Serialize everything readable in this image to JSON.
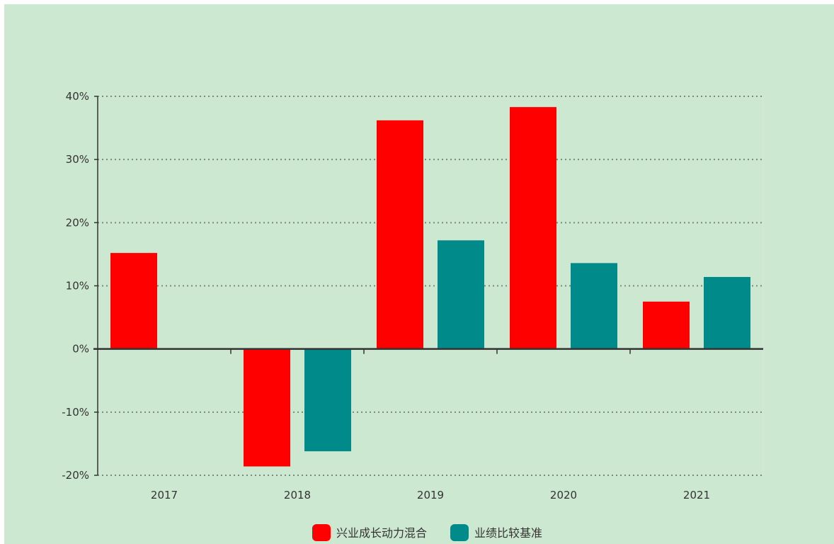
{
  "chart_data": {
    "type": "bar",
    "categories": [
      "2017",
      "2018",
      "2019",
      "2020",
      "2021"
    ],
    "series": [
      {
        "name": "兴业成长动力混合",
        "color": "#ff0000",
        "values": [
          15.2,
          -18.6,
          36.2,
          38.3,
          7.5
        ]
      },
      {
        "name": "业绩比较基准",
        "color": "#008b8b",
        "values": [
          null,
          -16.2,
          17.2,
          13.6,
          11.4
        ]
      }
    ],
    "yticks": [
      "40%",
      "30%",
      "20%",
      "10%",
      "0%",
      "-10%",
      "-20%"
    ],
    "ylim": [
      -20,
      40
    ],
    "grid": true,
    "legend": "bottom-center"
  }
}
